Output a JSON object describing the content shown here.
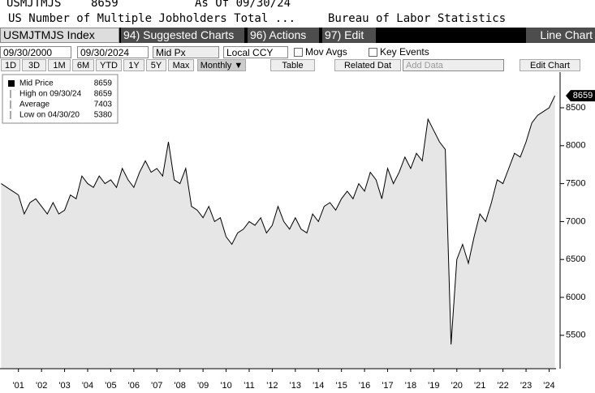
{
  "header": {
    "ticker": "USMJTMJS",
    "last": "8659",
    "as_of": "As Of 09/30/24",
    "name": "US Number of Multiple Jobholders Total ...",
    "source": "Bureau of Labor Statistics"
  },
  "toolbar": {
    "security": "USMJTMJS Index",
    "suggested": "94) Suggested Charts",
    "actions": "96) Actions",
    "edit": "97) Edit",
    "chart_kind": "Line Chart",
    "start_date": "09/30/2000",
    "end_date": "09/30/2024",
    "field": "Mid Px",
    "currency": "Local CCY",
    "mov_avgs": "Mov Avgs",
    "key_events": "Key Events",
    "ranges": [
      "1D",
      "3D",
      "1M",
      "6M",
      "YTD",
      "1Y",
      "5Y",
      "Max"
    ],
    "period": "Monthly ▼",
    "table": "Table",
    "related": "Related Dat",
    "add_data": "Add Data",
    "edit_chart": "Edit Chart"
  },
  "chart_data": {
    "type": "line",
    "color": "#000000",
    "fill_color": "#e6e6e6",
    "legend": [
      {
        "label": "Mid Price",
        "value": 8659
      },
      {
        "label": "High on 09/30/24",
        "value": 8659
      },
      {
        "label": "Average",
        "value": 7403
      },
      {
        "label": "Low on 04/30/20",
        "value": 5380
      }
    ],
    "x": [
      2000.75,
      2001,
      2001.25,
      2001.5,
      2001.75,
      2002,
      2002.25,
      2002.5,
      2002.75,
      2003,
      2003.25,
      2003.5,
      2003.75,
      2004,
      2004.25,
      2004.5,
      2004.75,
      2005,
      2005.25,
      2005.5,
      2005.75,
      2006,
      2006.25,
      2006.5,
      2006.75,
      2007,
      2007.25,
      2007.5,
      2007.75,
      2008,
      2008.25,
      2008.5,
      2008.75,
      2009,
      2009.25,
      2009.5,
      2009.75,
      2010,
      2010.25,
      2010.5,
      2010.75,
      2011,
      2011.25,
      2011.5,
      2011.75,
      2012,
      2012.25,
      2012.5,
      2012.75,
      2013,
      2013.25,
      2013.5,
      2013.75,
      2014,
      2014.25,
      2014.5,
      2014.75,
      2015,
      2015.25,
      2015.5,
      2015.75,
      2016,
      2016.25,
      2016.5,
      2016.75,
      2017,
      2017.25,
      2017.5,
      2017.75,
      2018,
      2018.25,
      2018.5,
      2018.75,
      2019,
      2019.25,
      2019.5,
      2019.75,
      2020,
      2020.25,
      2020.5,
      2020.75,
      2021,
      2021.25,
      2021.5,
      2021.75,
      2022,
      2022.25,
      2022.5,
      2022.75,
      2023,
      2023.25,
      2023.5,
      2023.75,
      2024,
      2024.25,
      2024.5,
      2024.75
    ],
    "values": [
      7500,
      7450,
      7400,
      7350,
      7100,
      7250,
      7300,
      7200,
      7100,
      7250,
      7100,
      7150,
      7350,
      7300,
      7600,
      7500,
      7450,
      7600,
      7500,
      7550,
      7450,
      7700,
      7550,
      7450,
      7650,
      7800,
      7650,
      7700,
      7600,
      8050,
      7550,
      7500,
      7700,
      7200,
      7150,
      7050,
      7200,
      7000,
      7050,
      6800,
      6700,
      6850,
      6900,
      7000,
      6950,
      7050,
      6850,
      6950,
      7200,
      7000,
      6900,
      7050,
      6900,
      6850,
      7100,
      7000,
      7200,
      7250,
      7150,
      7300,
      7400,
      7300,
      7500,
      7400,
      7650,
      7550,
      7300,
      7700,
      7500,
      7650,
      7850,
      7700,
      7900,
      7800,
      8350,
      8200,
      8050,
      7950,
      5380,
      6500,
      6700,
      6450,
      6800,
      7100,
      7000,
      7250,
      7550,
      7500,
      7700,
      7900,
      7850,
      8050,
      8300,
      8400,
      8450,
      8500,
      8659
    ],
    "xlim": [
      2000.7,
      2024.8
    ],
    "xticks": [
      {
        "value": 2001.5,
        "label": "'01"
      },
      {
        "value": 2002.5,
        "label": "'02"
      },
      {
        "value": 2003.5,
        "label": "'03"
      },
      {
        "value": 2004.5,
        "label": "'04"
      },
      {
        "value": 2005.5,
        "label": "'05"
      },
      {
        "value": 2006.5,
        "label": "'06"
      },
      {
        "value": 2007.5,
        "label": "'07"
      },
      {
        "value": 2008.5,
        "label": "'08"
      },
      {
        "value": 2009.5,
        "label": "'09"
      },
      {
        "value": 2010.5,
        "label": "'10"
      },
      {
        "value": 2011.5,
        "label": "'11"
      },
      {
        "value": 2012.5,
        "label": "'12"
      },
      {
        "value": 2013.5,
        "label": "'13"
      },
      {
        "value": 2014.5,
        "label": "'14"
      },
      {
        "value": 2015.5,
        "label": "'15"
      },
      {
        "value": 2016.5,
        "label": "'16"
      },
      {
        "value": 2017.5,
        "label": "'17"
      },
      {
        "value": 2018.5,
        "label": "'18"
      },
      {
        "value": 2019.5,
        "label": "'19"
      },
      {
        "value": 2020.5,
        "label": "'20"
      },
      {
        "value": 2021.5,
        "label": "'21"
      },
      {
        "value": 2022.5,
        "label": "'22"
      },
      {
        "value": 2023.5,
        "label": "'23"
      },
      {
        "value": 2024.5,
        "label": "'24"
      }
    ],
    "ylim": [
      5060,
      8970
    ],
    "yticks": [
      5500,
      6000,
      6500,
      7000,
      7500,
      8000,
      8500
    ]
  }
}
